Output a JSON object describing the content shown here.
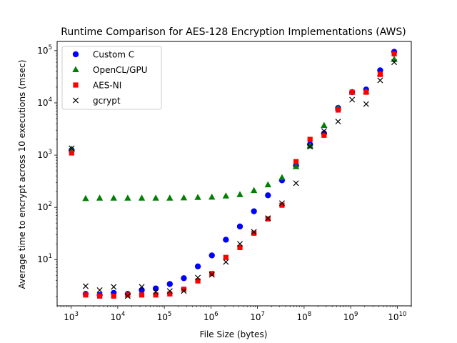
{
  "chart_data": {
    "type": "scatter",
    "title": "Runtime Comparison for AES-128 Encryption Implementations (AWS)",
    "xlabel": "File Size (bytes)",
    "ylabel": "Average time to encrypt across 10 executions (msec)",
    "xscale": "log",
    "yscale": "log",
    "xlim": [
      500,
      20000000000
    ],
    "ylim": [
      1.3,
      150000
    ],
    "x_ticks": [
      {
        "value": 1000,
        "base": "10",
        "exp": "3"
      },
      {
        "value": 10000,
        "base": "10",
        "exp": "4"
      },
      {
        "value": 100000,
        "base": "10",
        "exp": "5"
      },
      {
        "value": 1000000,
        "base": "10",
        "exp": "6"
      },
      {
        "value": 10000000,
        "base": "10",
        "exp": "7"
      },
      {
        "value": 100000000,
        "base": "10",
        "exp": "8"
      },
      {
        "value": 1000000000,
        "base": "10",
        "exp": "9"
      },
      {
        "value": 10000000000,
        "base": "10",
        "exp": "10"
      }
    ],
    "y_ticks": [
      {
        "value": 10,
        "base": "10",
        "exp": "1"
      },
      {
        "value": 100,
        "base": "10",
        "exp": "2"
      },
      {
        "value": 1000,
        "base": "10",
        "exp": "3"
      },
      {
        "value": 10000,
        "base": "10",
        "exp": "4"
      },
      {
        "value": 100000,
        "base": "10",
        "exp": "5"
      }
    ],
    "grid": false,
    "legend_position": "top-left",
    "x": [
      1024,
      2048,
      4096,
      8192,
      16384,
      32768,
      65536,
      131072,
      262144,
      524288,
      1048576,
      2097152,
      4194304,
      8388608,
      16777216,
      33554432,
      67108864,
      134217728,
      268435456,
      536870912,
      1073741824,
      2147483648,
      4294967296,
      8589934592
    ],
    "series": [
      {
        "name": "Custom C",
        "marker": "circle",
        "color": "#0000ff",
        "values": [
          1250,
          2.2,
          2.1,
          2.3,
          2.2,
          2.6,
          2.8,
          3.4,
          4.4,
          7.4,
          12,
          24,
          43,
          84,
          170,
          330,
          630,
          1600,
          2600,
          8000,
          16000,
          18000,
          42000,
          95000
        ]
      },
      {
        "name": "OpenCL/GPU",
        "marker": "triangle",
        "color": "#008000",
        "values": [
          1300,
          147,
          150,
          150,
          150,
          150,
          150,
          150,
          152,
          155,
          157,
          165,
          175,
          210,
          270,
          370,
          600,
          1500,
          3700,
          8000,
          16000,
          16500,
          36000,
          68000
        ]
      },
      {
        "name": "AES-NI",
        "marker": "square",
        "color": "#ff0000",
        "values": [
          1100,
          2.1,
          2.0,
          2.0,
          2.1,
          2.1,
          2.1,
          2.2,
          2.7,
          3.9,
          5.4,
          11,
          17,
          32,
          60,
          110,
          750,
          2000,
          2400,
          7300,
          16000,
          16000,
          35000,
          87000
        ]
      },
      {
        "name": "gcrypt",
        "marker": "x",
        "color": "#000000",
        "values": [
          1350,
          3.1,
          2.6,
          3.0,
          2.0,
          3.0,
          2.4,
          2.5,
          2.5,
          4.5,
          5.1,
          9.0,
          20,
          34,
          62,
          120,
          290,
          1450,
          2900,
          4400,
          11500,
          9500,
          27000,
          60000
        ]
      }
    ]
  }
}
